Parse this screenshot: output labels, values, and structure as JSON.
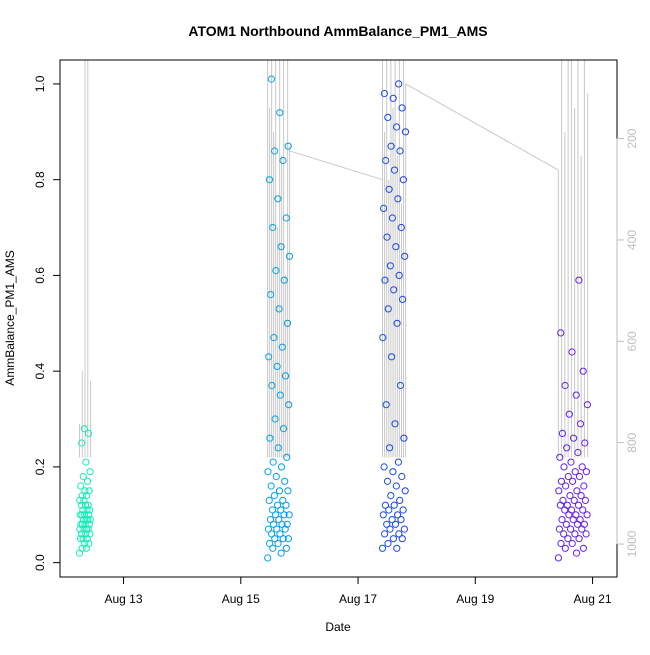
{
  "chart_data": {
    "type": "scatter",
    "title": "ATOM1 Northbound AmmBalance_PM1_AMS",
    "xlabel": "Date",
    "ylabel": "AmmBalance_PM1_AMS",
    "x_unit": "date",
    "xlim": [
      "2022-08-11T22:00",
      "2022-08-21T10:00"
    ],
    "ylim": [
      -0.03,
      1.05
    ],
    "x_ticks": [
      {
        "label": "Aug 13",
        "value": "2022-08-13"
      },
      {
        "label": "Aug 15",
        "value": "2022-08-15"
      },
      {
        "label": "Aug 17",
        "value": "2022-08-17"
      },
      {
        "label": "Aug 19",
        "value": "2022-08-19"
      },
      {
        "label": "Aug 21",
        "value": "2022-08-21"
      }
    ],
    "y_ticks": [
      "0.0",
      "0.2",
      "0.4",
      "0.6",
      "0.8",
      "1.0"
    ],
    "right_axis": {
      "ticks": [
        "200",
        "400",
        "600",
        "800",
        "1000"
      ],
      "lim": [
        1065,
        45
      ],
      "inverted": true,
      "color": "#bebebe"
    },
    "grid": false,
    "legend": "none",
    "marker": "open-circle",
    "color_gradient": [
      "#19f5b0",
      "#00b7ee",
      "#1f2fe6",
      "#7a1fe6"
    ],
    "point_clusters": [
      {
        "start": "2022-08-12T06:00",
        "end": "2022-08-12T10:30",
        "y_points": [
          0.02,
          0.03,
          0.03,
          0.04,
          0.04,
          0.05,
          0.05,
          0.05,
          0.06,
          0.06,
          0.06,
          0.07,
          0.07,
          0.07,
          0.07,
          0.08,
          0.08,
          0.08,
          0.08,
          0.09,
          0.09,
          0.09,
          0.09,
          0.1,
          0.1,
          0.1,
          0.1,
          0.11,
          0.11,
          0.11,
          0.12,
          0.12,
          0.12,
          0.13,
          0.13,
          0.14,
          0.14,
          0.15,
          0.15,
          0.16,
          0.17,
          0.18,
          0.19,
          0.21,
          0.25,
          0.27,
          0.28
        ],
        "line_tops": [
          0.29,
          0.4,
          1.05,
          1.05,
          0.38
        ]
      },
      {
        "start": "2022-08-15T11:00",
        "end": "2022-08-15T20:00",
        "y_points": [
          0.01,
          0.02,
          0.03,
          0.03,
          0.04,
          0.04,
          0.05,
          0.05,
          0.05,
          0.06,
          0.06,
          0.07,
          0.07,
          0.07,
          0.08,
          0.08,
          0.08,
          0.09,
          0.09,
          0.1,
          0.1,
          0.1,
          0.11,
          0.11,
          0.12,
          0.12,
          0.13,
          0.13,
          0.14,
          0.15,
          0.15,
          0.16,
          0.17,
          0.18,
          0.19,
          0.2,
          0.21,
          0.22,
          0.24,
          0.26,
          0.28,
          0.3,
          0.33,
          0.35,
          0.37,
          0.39,
          0.41,
          0.43,
          0.45,
          0.47,
          0.5,
          0.53,
          0.56,
          0.59,
          0.61,
          0.64,
          0.66,
          0.7,
          0.72,
          0.76,
          0.8,
          0.84,
          0.86,
          0.87,
          0.94,
          1.01
        ],
        "line_tops": [
          1.05,
          0.95,
          1.05,
          0.9,
          1.05,
          0.7,
          1.05,
          0.85,
          1.05,
          0.6,
          1.05,
          0.87
        ]
      },
      {
        "start": "2022-08-17T10:00",
        "end": "2022-08-17T19:30",
        "y_points": [
          0.03,
          0.03,
          0.04,
          0.05,
          0.05,
          0.06,
          0.06,
          0.07,
          0.07,
          0.08,
          0.08,
          0.09,
          0.09,
          0.1,
          0.1,
          0.11,
          0.11,
          0.12,
          0.12,
          0.13,
          0.14,
          0.15,
          0.16,
          0.17,
          0.18,
          0.19,
          0.2,
          0.21,
          0.24,
          0.26,
          0.29,
          0.33,
          0.37,
          0.43,
          0.47,
          0.5,
          0.53,
          0.55,
          0.57,
          0.59,
          0.6,
          0.62,
          0.64,
          0.66,
          0.68,
          0.7,
          0.72,
          0.74,
          0.76,
          0.78,
          0.8,
          0.82,
          0.84,
          0.86,
          0.87,
          0.9,
          0.91,
          0.93,
          0.95,
          0.97,
          0.98,
          1.0
        ],
        "line_tops": [
          1.05,
          0.9,
          1.05,
          0.8,
          1.05,
          0.95,
          1.05,
          0.85,
          1.05,
          0.75,
          1.05,
          1.0
        ]
      },
      {
        "start": "2022-08-20T10:00",
        "end": "2022-08-20T22:00",
        "y_points": [
          0.01,
          0.02,
          0.03,
          0.03,
          0.04,
          0.04,
          0.05,
          0.05,
          0.06,
          0.06,
          0.06,
          0.07,
          0.07,
          0.07,
          0.08,
          0.08,
          0.08,
          0.09,
          0.09,
          0.09,
          0.1,
          0.1,
          0.1,
          0.11,
          0.11,
          0.11,
          0.12,
          0.12,
          0.12,
          0.13,
          0.13,
          0.13,
          0.14,
          0.14,
          0.15,
          0.15,
          0.16,
          0.16,
          0.17,
          0.17,
          0.18,
          0.18,
          0.19,
          0.19,
          0.2,
          0.2,
          0.21,
          0.22,
          0.23,
          0.24,
          0.25,
          0.26,
          0.27,
          0.29,
          0.31,
          0.33,
          0.35,
          0.37,
          0.4,
          0.44,
          0.48,
          0.59
        ],
        "line_tops": [
          0.82,
          1.05,
          0.9,
          1.05,
          1.05,
          0.95,
          1.05,
          0.85,
          1.05,
          0.98
        ]
      }
    ],
    "connectors": [
      {
        "from": [
          "2022-08-15T20:00",
          0.86
        ],
        "to": [
          "2022-08-17T10:00",
          0.8
        ]
      },
      {
        "from": [
          "2022-08-17T19:30",
          1.0
        ],
        "to": [
          "2022-08-20T10:00",
          0.82
        ]
      }
    ]
  }
}
